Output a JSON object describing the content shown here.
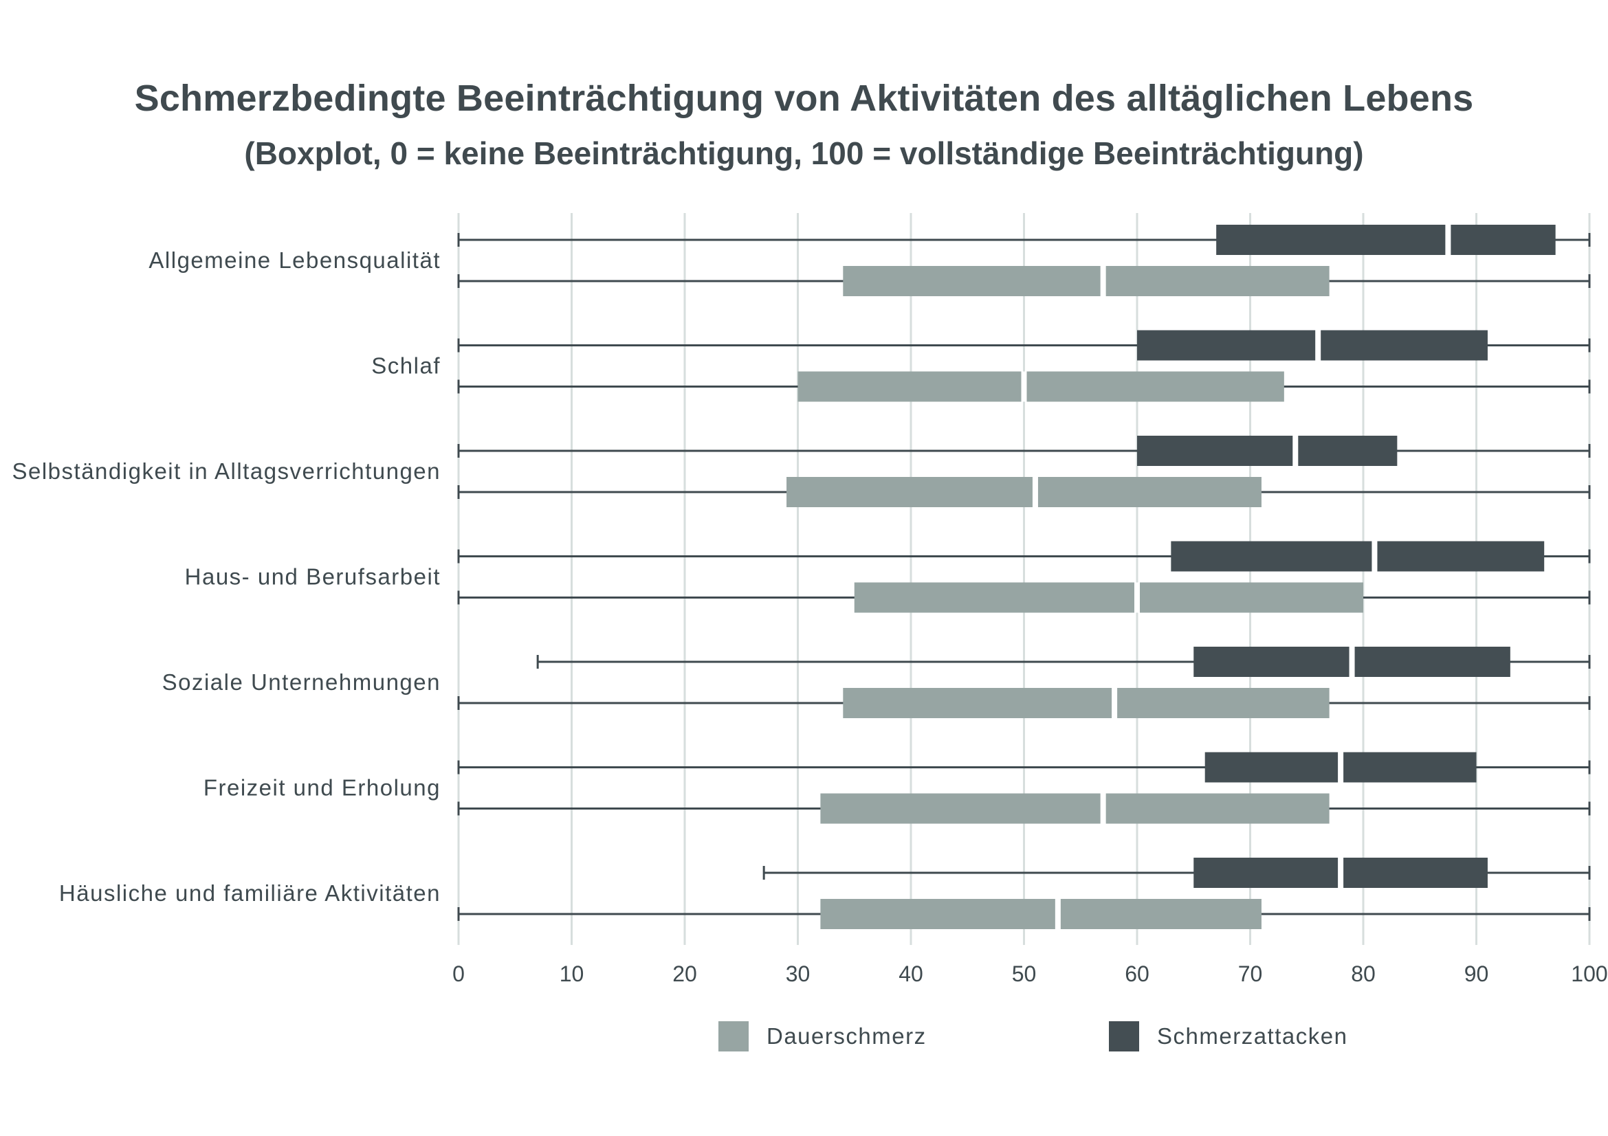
{
  "chart_data": {
    "type": "boxplot",
    "orientation": "horizontal",
    "title": "Schmerzbedingte Beeinträchtigung von Aktivitäten des alltäglichen Lebens",
    "subtitle": "(Boxplot, 0 = keine Beeinträchtigung, 100 = vollständige Beeinträchtigung)",
    "xlim": [
      0,
      100
    ],
    "xticks": [
      "0",
      "10",
      "20",
      "30",
      "40",
      "50",
      "60",
      "70",
      "80",
      "90",
      "100"
    ],
    "grid": "vertical",
    "legend_position": "bottom",
    "categories": [
      "Allgemeine Lebensqualität",
      "Schlaf",
      "Selbständigkeit in Alltagsverrichtungen",
      "Haus- und Berufsarbeit",
      "Soziale Unternehmungen",
      "Freizeit und Erholung",
      "Häusliche und familiäre Aktivitäten"
    ],
    "series": [
      {
        "name": "Schmerzattacken",
        "color": "#444e53",
        "boxes": [
          {
            "min": 0,
            "q1": 67,
            "median": 87.5,
            "q3": 97,
            "max": 100
          },
          {
            "min": 0,
            "q1": 60,
            "median": 76,
            "q3": 91,
            "max": 100
          },
          {
            "min": 0,
            "q1": 60,
            "median": 74,
            "q3": 83,
            "max": 100
          },
          {
            "min": 0,
            "q1": 63,
            "median": 81,
            "q3": 96,
            "max": 100
          },
          {
            "min": 7,
            "q1": 65,
            "median": 79,
            "q3": 93,
            "max": 100
          },
          {
            "min": 0,
            "q1": 66,
            "median": 78,
            "q3": 90,
            "max": 100
          },
          {
            "min": 27,
            "q1": 65,
            "median": 78,
            "q3": 91,
            "max": 100
          }
        ]
      },
      {
        "name": "Dauerschmerz",
        "color": "#97a5a3",
        "boxes": [
          {
            "min": 0,
            "q1": 34,
            "median": 57,
            "q3": 77,
            "max": 100
          },
          {
            "min": 0,
            "q1": 30,
            "median": 50,
            "q3": 73,
            "max": 100
          },
          {
            "min": 0,
            "q1": 29,
            "median": 51,
            "q3": 71,
            "max": 100
          },
          {
            "min": 0,
            "q1": 35,
            "median": 60,
            "q3": 80,
            "max": 100
          },
          {
            "min": 0,
            "q1": 34,
            "median": 58,
            "q3": 77,
            "max": 100
          },
          {
            "min": 0,
            "q1": 32,
            "median": 57,
            "q3": 77,
            "max": 100
          },
          {
            "min": 0,
            "q1": 32,
            "median": 53,
            "q3": 71,
            "max": 100
          }
        ]
      }
    ],
    "legend": [
      "Dauerschmerz",
      "Schmerzattacken"
    ]
  },
  "colors": {
    "grid": "#d7dedd",
    "axis_line": "#3f4a4f"
  }
}
